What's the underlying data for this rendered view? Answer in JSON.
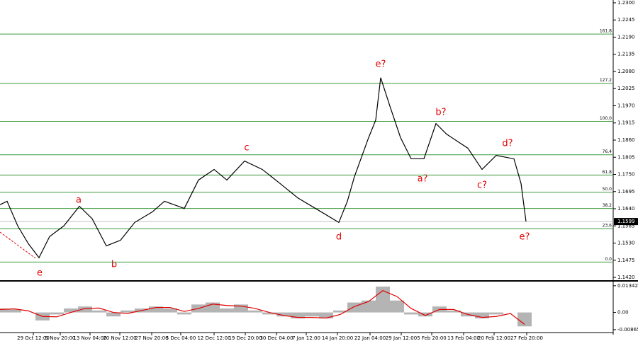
{
  "chart_data": [
    {
      "type": "line",
      "x": [
        0,
        5,
        12.5,
        20,
        27.5,
        35,
        45,
        56,
        65,
        75,
        85,
        95,
        107.5,
        116,
        130,
        140,
        151,
        160,
        172.5,
        185,
        197.5,
        210,
        222.5,
        239,
        245,
        250,
        260,
        265,
        268.5,
        275,
        282.5,
        290,
        299,
        307.5,
        315,
        330,
        340,
        350,
        362.5,
        367.5,
        371
      ],
      "series": [
        {
          "color": "#000000",
          "values": [
            1.1653,
            1.1664,
            1.1585,
            1.1528,
            1.1483,
            1.1551,
            1.1585,
            1.1648,
            1.1608,
            1.1521,
            1.1539,
            1.1596,
            1.163,
            1.1664,
            1.1641,
            1.1732,
            1.1766,
            1.1732,
            1.1793,
            1.1766,
            1.1721,
            1.1675,
            1.1641,
            1.1596,
            1.1664,
            1.1743,
            1.1868,
            1.1924,
            1.206,
            1.1969,
            1.1868,
            1.18,
            1.18,
            1.1913,
            1.1879,
            1.1834,
            1.1766,
            1.1811,
            1.18,
            1.1721,
            1.1599
          ]
        }
      ],
      "last_price": 1.1599,
      "xlim": [
        0,
        432.5
      ],
      "xticks": [
        {
          "value": 23.5,
          "label": "29 Oct 12:00"
        },
        {
          "value": 42.5,
          "label": "5 Nov 20:00"
        },
        {
          "value": 63.5,
          "label": "13 Nov 04:00"
        },
        {
          "value": 84.5,
          "label": "20 Nov 12:00"
        },
        {
          "value": 107,
          "label": "27 Nov 20:00"
        },
        {
          "value": 127.5,
          "label": "5 Dec 04:00"
        },
        {
          "value": 151,
          "label": "12 Dec 12:00"
        },
        {
          "value": 173,
          "label": "19 Dec 20:00"
        },
        {
          "value": 195,
          "label": "30 Dec 04:00"
        },
        {
          "value": 216,
          "label": "7 Jan 12:00"
        },
        {
          "value": 238,
          "label": "14 Jan 20:00"
        },
        {
          "value": 261,
          "label": "22 Jan 04:00"
        },
        {
          "value": 283,
          "label": "29 Jan 12:00"
        },
        {
          "value": 304.5,
          "label": "5 Feb 20:00"
        },
        {
          "value": 327,
          "label": "13 Feb 04:00"
        },
        {
          "value": 348.5,
          "label": "20 Feb 12:00"
        },
        {
          "value": 371.5,
          "label": "27 Feb 20:00"
        }
      ],
      "ylim": [
        1.1411,
        1.2309
      ],
      "yticks": [
        {
          "value": 1.23,
          "label": "1.2300"
        },
        {
          "value": 1.2245,
          "label": "1.2245"
        },
        {
          "value": 1.219,
          "label": "1.2190"
        },
        {
          "value": 1.2135,
          "label": "1.2135"
        },
        {
          "value": 1.208,
          "label": "1.2080"
        },
        {
          "value": 1.2025,
          "label": "1.2025"
        },
        {
          "value": 1.197,
          "label": "1.1970"
        },
        {
          "value": 1.1915,
          "label": "1.1915"
        },
        {
          "value": 1.186,
          "label": "1.1860"
        },
        {
          "value": 1.1805,
          "label": "1.1805"
        },
        {
          "value": 1.175,
          "label": "1.1750"
        },
        {
          "value": 1.1695,
          "label": "1.1695"
        },
        {
          "value": 1.164,
          "label": "1.1640"
        },
        {
          "value": 1.1585,
          "label": "1.1585"
        },
        {
          "value": 1.153,
          "label": "1.1530"
        },
        {
          "value": 1.1475,
          "label": "1.1475"
        },
        {
          "value": 1.142,
          "label": "1.1420"
        }
      ],
      "levels": [
        {
          "label": "0.0",
          "value": 1.1469
        },
        {
          "label": "23.6",
          "value": 1.1576
        },
        {
          "label": "38.2",
          "value": 1.1641
        },
        {
          "label": "50.0",
          "value": 1.1693
        },
        {
          "label": "61.8",
          "value": 1.1748
        },
        {
          "label": "76.4",
          "value": 1.1813
        },
        {
          "label": "100.0",
          "value": 1.192
        },
        {
          "label": "127.2",
          "value": 1.2042
        },
        {
          "label": "161.8",
          "value": 1.22
        }
      ],
      "level_color": "#3c9a3c",
      "annotations": [
        "e",
        "a",
        "b",
        "c",
        "d",
        "e?",
        "a?",
        "b?",
        "c?",
        "d?",
        "e?"
      ]
    },
    {
      "type": "macd",
      "x": [
        0,
        10,
        20,
        30,
        40,
        50,
        60,
        70,
        80,
        90,
        100,
        110,
        120,
        130,
        140,
        150,
        160,
        170,
        180,
        190,
        200,
        210,
        220,
        230,
        240,
        250,
        260,
        270,
        280,
        290,
        300,
        310,
        320,
        330,
        340,
        350,
        360,
        370
      ],
      "series": [
        {
          "color": "#b4b4b4",
          "values": [
            0.002,
            0.0015,
            0,
            -0.004,
            -0.001,
            0.002,
            0.003,
            0.001,
            -0.002,
            0.001,
            0.002,
            0.003,
            0.002,
            -0.001,
            0.004,
            0.005,
            0.002,
            0.004,
            0.001,
            -0.001,
            -0.002,
            -0.003,
            -0.002,
            -0.003,
            0.001,
            0.005,
            0.006,
            0.013,
            0.006,
            -0.001,
            -0.002,
            0.003,
            0.001,
            -0.002,
            -0.003,
            -0.001,
            0,
            -0.007
          ]
        },
        {
          "color": "#e00000",
          "values": [
            0.0015,
            0.0018,
            0.0008,
            -0.002,
            -0.0022,
            0,
            0.002,
            0.0022,
            0,
            -0.0005,
            0.001,
            0.0025,
            0.0025,
            0.0005,
            0.002,
            0.0042,
            0.0035,
            0.0032,
            0.002,
            0,
            -0.0015,
            -0.0025,
            -0.0025,
            -0.0028,
            -0.001,
            0.003,
            0.0055,
            0.011,
            0.008,
            0.002,
            -0.0015,
            0.0015,
            0.0015,
            -0.001,
            -0.0025,
            -0.002,
            -0.0005,
            -0.006
          ]
        }
      ],
      "ylim": [
        -0.0101,
        0.0155
      ],
      "yticks": [
        0.01342,
        {
          "value": 0,
          "label": "0.00"
        },
        -0.00865
      ]
    }
  ]
}
